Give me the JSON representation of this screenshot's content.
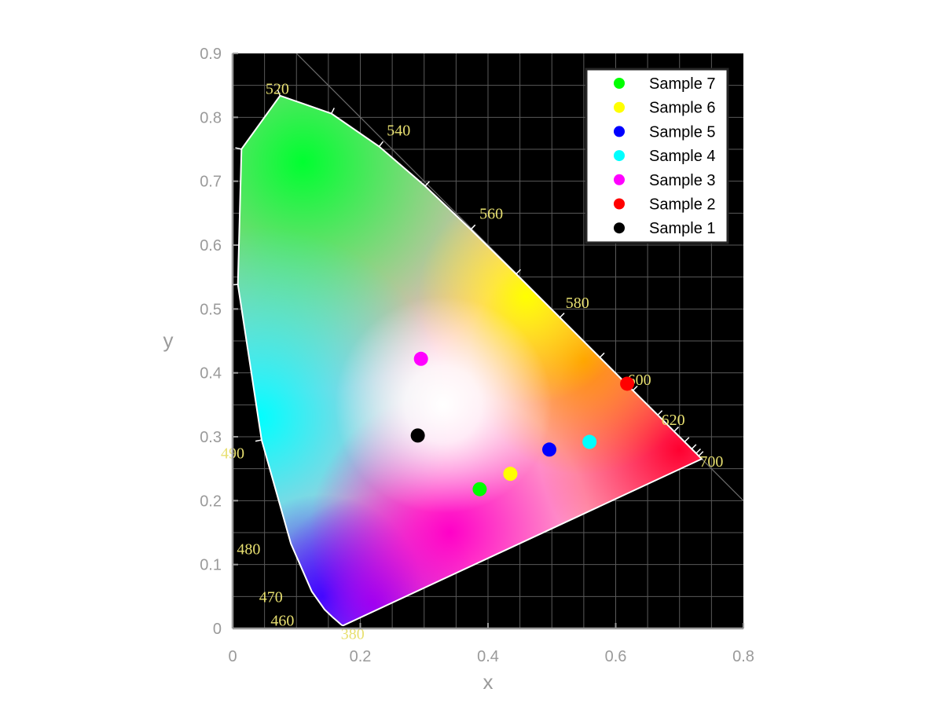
{
  "chart_data": {
    "type": "scatter",
    "xlabel": "x",
    "ylabel": "y",
    "xlim": [
      0,
      0.8
    ],
    "ylim": [
      0,
      0.9
    ],
    "xticks": [
      "0",
      "0.2",
      "0.4",
      "0.6",
      "0.8"
    ],
    "yticks": [
      "0",
      "0.1",
      "0.2",
      "0.3",
      "0.4",
      "0.5",
      "0.6",
      "0.7",
      "0.8",
      "0.9"
    ],
    "grid": true,
    "legend_position": "top-right",
    "background": "CIE 1931 chromaticity diagram",
    "wavelength_labels": [
      {
        "text": "520",
        "x": 0.07,
        "y": 0.845
      },
      {
        "text": "540",
        "x": 0.26,
        "y": 0.78
      },
      {
        "text": "560",
        "x": 0.405,
        "y": 0.65
      },
      {
        "text": "580",
        "x": 0.54,
        "y": 0.51
      },
      {
        "text": "600",
        "x": 0.637,
        "y": 0.39
      },
      {
        "text": "620",
        "x": 0.69,
        "y": 0.327
      },
      {
        "text": "700",
        "x": 0.75,
        "y": 0.262
      },
      {
        "text": "490",
        "x": 0.0,
        "y": 0.275
      },
      {
        "text": "480",
        "x": 0.025,
        "y": 0.125
      },
      {
        "text": "470",
        "x": 0.06,
        "y": 0.05
      },
      {
        "text": "460",
        "x": 0.078,
        "y": 0.013
      },
      {
        "text": "380",
        "x": 0.188,
        "y": -0.008
      }
    ],
    "series": [
      {
        "name": "Sample 7",
        "color": "#00ff00",
        "x": [
          0.387
        ],
        "y": [
          0.218
        ]
      },
      {
        "name": "Sample 6",
        "color": "#ffff00",
        "x": [
          0.435
        ],
        "y": [
          0.242
        ]
      },
      {
        "name": "Sample 5",
        "color": "#0000ff",
        "x": [
          0.496
        ],
        "y": [
          0.28
        ]
      },
      {
        "name": "Sample 4",
        "color": "#00ffff",
        "x": [
          0.559
        ],
        "y": [
          0.292
        ]
      },
      {
        "name": "Sample 3",
        "color": "#ff00ff",
        "x": [
          0.295
        ],
        "y": [
          0.422
        ]
      },
      {
        "name": "Sample 2",
        "color": "#ff0000",
        "x": [
          0.618
        ],
        "y": [
          0.383
        ]
      },
      {
        "name": "Sample 1",
        "color": "#000000",
        "x": [
          0.29
        ],
        "y": [
          0.302
        ]
      }
    ]
  }
}
